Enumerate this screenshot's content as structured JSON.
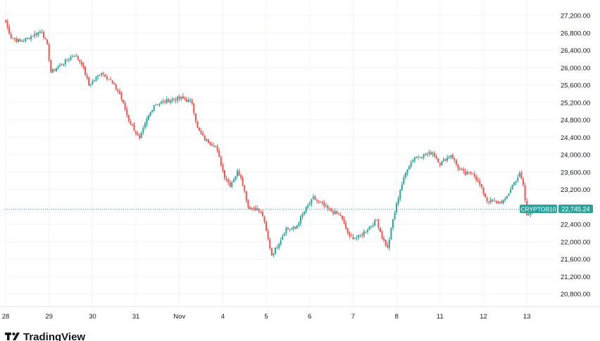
{
  "chart_data": {
    "type": "candlestick",
    "symbol": "CRYPTOB10",
    "last_price": "22,745.24",
    "last_value": 22745.24,
    "ylim": [
      20500,
      27400
    ],
    "y_ticks": [
      {
        "value": 27200,
        "label": "27,200.00"
      },
      {
        "value": 26800,
        "label": "26,800.00"
      },
      {
        "value": 26400,
        "label": "26,400.00"
      },
      {
        "value": 26000,
        "label": "26,000.00"
      },
      {
        "value": 25600,
        "label": "25,600.00"
      },
      {
        "value": 25200,
        "label": "25,200.00"
      },
      {
        "value": 24800,
        "label": "24,800.00"
      },
      {
        "value": 24400,
        "label": "24,400.00"
      },
      {
        "value": 24000,
        "label": "24,000.00"
      },
      {
        "value": 23600,
        "label": "23,600.00"
      },
      {
        "value": 23200,
        "label": "23,200.00"
      },
      {
        "value": 22800,
        "label": "22,800.00"
      },
      {
        "value": 22400,
        "label": "22,400.00"
      },
      {
        "value": 22000,
        "label": "22,000.00"
      },
      {
        "value": 21600,
        "label": "21,600.00"
      },
      {
        "value": 21200,
        "label": "21,200.00"
      },
      {
        "value": 20800,
        "label": "20,800.00"
      }
    ],
    "x_ticks": [
      {
        "label": "28",
        "bar": 0
      },
      {
        "label": "29",
        "bar": 24
      },
      {
        "label": "30",
        "bar": 48
      },
      {
        "label": "31",
        "bar": 72
      },
      {
        "label": "Nov",
        "bar": 96
      },
      {
        "label": "4",
        "bar": 120
      },
      {
        "label": "5",
        "bar": 144
      },
      {
        "label": "6",
        "bar": 168
      },
      {
        "label": "7",
        "bar": 192
      },
      {
        "label": "8",
        "bar": 216
      },
      {
        "label": "11",
        "bar": 240
      },
      {
        "label": "12",
        "bar": 264
      },
      {
        "label": "13",
        "bar": 288
      }
    ],
    "total_bars": 300,
    "up_color": "#26a69a",
    "down_color": "#ef5350",
    "price_keypoints": [
      [
        0,
        27050
      ],
      [
        3,
        26700
      ],
      [
        8,
        26600
      ],
      [
        13,
        26700
      ],
      [
        20,
        26850
      ],
      [
        23,
        26500
      ],
      [
        25,
        25900
      ],
      [
        30,
        26050
      ],
      [
        38,
        26300
      ],
      [
        42,
        26100
      ],
      [
        46,
        25600
      ],
      [
        53,
        25900
      ],
      [
        58,
        25700
      ],
      [
        63,
        25400
      ],
      [
        68,
        24800
      ],
      [
        74,
        24350
      ],
      [
        78,
        24800
      ],
      [
        82,
        25150
      ],
      [
        90,
        25250
      ],
      [
        97,
        25300
      ],
      [
        103,
        25200
      ],
      [
        106,
        24600
      ],
      [
        110,
        24350
      ],
      [
        116,
        24200
      ],
      [
        121,
        23500
      ],
      [
        124,
        23300
      ],
      [
        128,
        23600
      ],
      [
        130,
        23500
      ],
      [
        134,
        22800
      ],
      [
        139,
        22750
      ],
      [
        142,
        22600
      ],
      [
        145,
        22050
      ],
      [
        147,
        21700
      ],
      [
        150,
        21900
      ],
      [
        155,
        22300
      ],
      [
        160,
        22300
      ],
      [
        165,
        22700
      ],
      [
        170,
        23000
      ],
      [
        175,
        22850
      ],
      [
        180,
        22700
      ],
      [
        185,
        22600
      ],
      [
        190,
        22100
      ],
      [
        195,
        22100
      ],
      [
        200,
        22300
      ],
      [
        205,
        22500
      ],
      [
        208,
        22100
      ],
      [
        211,
        21850
      ],
      [
        214,
        22500
      ],
      [
        218,
        23200
      ],
      [
        222,
        23700
      ],
      [
        226,
        23950
      ],
      [
        232,
        24000
      ],
      [
        236,
        24050
      ],
      [
        240,
        23800
      ],
      [
        246,
        24000
      ],
      [
        250,
        23700
      ],
      [
        254,
        23550
      ],
      [
        258,
        23600
      ],
      [
        262,
        23300
      ],
      [
        266,
        22950
      ],
      [
        272,
        22900
      ],
      [
        276,
        22950
      ],
      [
        280,
        23300
      ],
      [
        284,
        23550
      ],
      [
        286,
        23300
      ],
      [
        288,
        22600
      ],
      [
        291,
        22745
      ]
    ]
  },
  "price_label": {
    "symbol": "CRYPTOB10",
    "value": "22,745.24"
  },
  "branding": {
    "name": "TradingView"
  }
}
